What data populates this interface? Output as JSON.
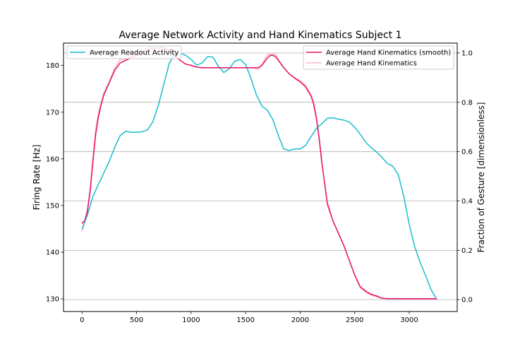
{
  "chart_data": {
    "type": "line",
    "title": "Average Network Activity and Hand Kinematics Subject 1",
    "xlabel": "",
    "ylabel_left": "Firing Rate [Hz]",
    "ylabel_right": "Fraction of Gesture [dimensionless]",
    "xlim": [
      -170,
      3440
    ],
    "ylim_left": [
      127.3,
      184.8
    ],
    "ylim_right": [
      -0.048,
      1.04
    ],
    "xticks": [
      0,
      500,
      1000,
      1500,
      2000,
      2500,
      3000
    ],
    "yticks_left": [
      130,
      140,
      150,
      160,
      170,
      180
    ],
    "yticks_right": [
      0.0,
      0.2,
      0.4,
      0.6,
      0.8,
      1.0
    ],
    "ytick_labels_right": [
      "0.0",
      "0.2",
      "0.4",
      "0.6",
      "0.8",
      "1.0"
    ],
    "grid": "horizontal-right-axis",
    "legend_left": {
      "placement": "upper-left",
      "entries": [
        "Average Readout Activity"
      ]
    },
    "legend_right": {
      "placement": "upper-right",
      "entries": [
        "Average Hand Kinematics (smooth)",
        "Average Hand Kinematics"
      ]
    },
    "colors": {
      "readout": "#17becf",
      "smooth": "#e8116a",
      "raw": "#f7b6d2"
    },
    "series": [
      {
        "name": "Average Readout Activity",
        "axis": "left",
        "x": [
          0,
          50,
          100,
          150,
          200,
          250,
          300,
          350,
          400,
          450,
          500,
          550,
          600,
          650,
          700,
          750,
          800,
          850,
          900,
          950,
          1000,
          1050,
          1100,
          1150,
          1200,
          1250,
          1300,
          1350,
          1400,
          1450,
          1500,
          1550,
          1600,
          1650,
          1700,
          1750,
          1800,
          1850,
          1900,
          1950,
          2000,
          2050,
          2100,
          2150,
          2200,
          2250,
          2300,
          2350,
          2400,
          2450,
          2500,
          2550,
          2600,
          2650,
          2700,
          2750,
          2800,
          2850,
          2900,
          2950,
          3000,
          3050,
          3100,
          3150,
          3200,
          3250
        ],
        "y": [
          145,
          148,
          152,
          154.5,
          157,
          159.5,
          162.5,
          165,
          165.9,
          165.7,
          165.7,
          165.8,
          166.2,
          168,
          171.5,
          176,
          180.5,
          182.4,
          182.6,
          182.2,
          181.3,
          180.1,
          180.5,
          181.9,
          181.8,
          179.8,
          178.5,
          179.3,
          180.9,
          181.3,
          180.2,
          177.2,
          173.6,
          171.3,
          170.4,
          168.4,
          165,
          162.1,
          161.8,
          162.1,
          162.1,
          162.9,
          164.8,
          166.5,
          167.6,
          168.7,
          168.8,
          168.5,
          168.3,
          167.9,
          166.8,
          165.3,
          163.6,
          162.4,
          161.5,
          160.3,
          159,
          158.4,
          156.6,
          152,
          146,
          141.2,
          137.8,
          135,
          132,
          130
        ]
      },
      {
        "name": "Average Hand Kinematics (smooth)",
        "axis": "right",
        "x": [
          0,
          25,
          50,
          75,
          100,
          125,
          150,
          175,
          200,
          250,
          300,
          350,
          400,
          450,
          500,
          550,
          600,
          650,
          700,
          750,
          800,
          850,
          900,
          950,
          1000,
          1050,
          1100,
          1200,
          1300,
          1400,
          1500,
          1550,
          1600,
          1625,
          1650,
          1675,
          1700,
          1725,
          1750,
          1775,
          1800,
          1850,
          1900,
          1950,
          2000,
          2050,
          2100,
          2125,
          2150,
          2175,
          2200,
          2250,
          2300,
          2350,
          2400,
          2450,
          2500,
          2550,
          2600,
          2650,
          2700,
          2750,
          2800,
          2900,
          3000,
          3100,
          3200,
          3250
        ],
        "y": [
          0.31,
          0.32,
          0.36,
          0.44,
          0.56,
          0.67,
          0.74,
          0.79,
          0.83,
          0.88,
          0.93,
          0.96,
          0.97,
          0.98,
          0.99,
          1.0,
          1.01,
          1.02,
          1.02,
          1.02,
          1.01,
          0.99,
          0.97,
          0.955,
          0.95,
          0.943,
          0.94,
          0.94,
          0.94,
          0.94,
          0.94,
          0.94,
          0.94,
          0.942,
          0.95,
          0.965,
          0.98,
          0.99,
          0.99,
          0.985,
          0.97,
          0.94,
          0.915,
          0.898,
          0.883,
          0.862,
          0.825,
          0.79,
          0.73,
          0.65,
          0.55,
          0.39,
          0.32,
          0.27,
          0.22,
          0.16,
          0.1,
          0.053,
          0.035,
          0.022,
          0.015,
          0.006,
          0.004,
          0.004,
          0.004,
          0.004,
          0.004,
          0.004
        ]
      },
      {
        "name": "Average Hand Kinematics",
        "axis": "right",
        "x": [
          0,
          25,
          50,
          75,
          100,
          125,
          150,
          175,
          200,
          250,
          300,
          350,
          400,
          450,
          500,
          550,
          600,
          650,
          700,
          750,
          800,
          850,
          900,
          950,
          1000,
          1050,
          1100,
          1200,
          1300,
          1400,
          1500,
          1550,
          1600,
          1625,
          1650,
          1675,
          1700,
          1725,
          1750,
          1775,
          1800,
          1850,
          1900,
          1950,
          2000,
          2050,
          2100,
          2125,
          2150,
          2175,
          2200,
          2250,
          2300,
          2350,
          2400,
          2450,
          2500,
          2550,
          2600,
          2650,
          2700,
          2750,
          2800,
          2900,
          3000,
          3100,
          3200,
          3250
        ],
        "y": [
          0.28,
          0.31,
          0.37,
          0.46,
          0.58,
          0.69,
          0.76,
          0.8,
          0.84,
          0.885,
          0.94,
          0.975,
          0.975,
          0.985,
          0.995,
          1.005,
          1.02,
          1.028,
          1.025,
          1.025,
          1.012,
          0.995,
          0.97,
          0.955,
          0.948,
          0.942,
          0.94,
          0.94,
          0.94,
          0.94,
          0.94,
          0.94,
          0.935,
          0.935,
          0.955,
          0.975,
          0.993,
          0.995,
          0.995,
          0.993,
          0.975,
          0.94,
          0.915,
          0.9,
          0.888,
          0.87,
          0.83,
          0.8,
          0.74,
          0.66,
          0.56,
          0.38,
          0.32,
          0.27,
          0.22,
          0.16,
          0.1,
          0.048,
          0.03,
          0.018,
          0.012,
          0.005,
          0.004,
          0.004,
          0.004,
          0.004,
          0.004,
          0.004
        ]
      }
    ]
  }
}
